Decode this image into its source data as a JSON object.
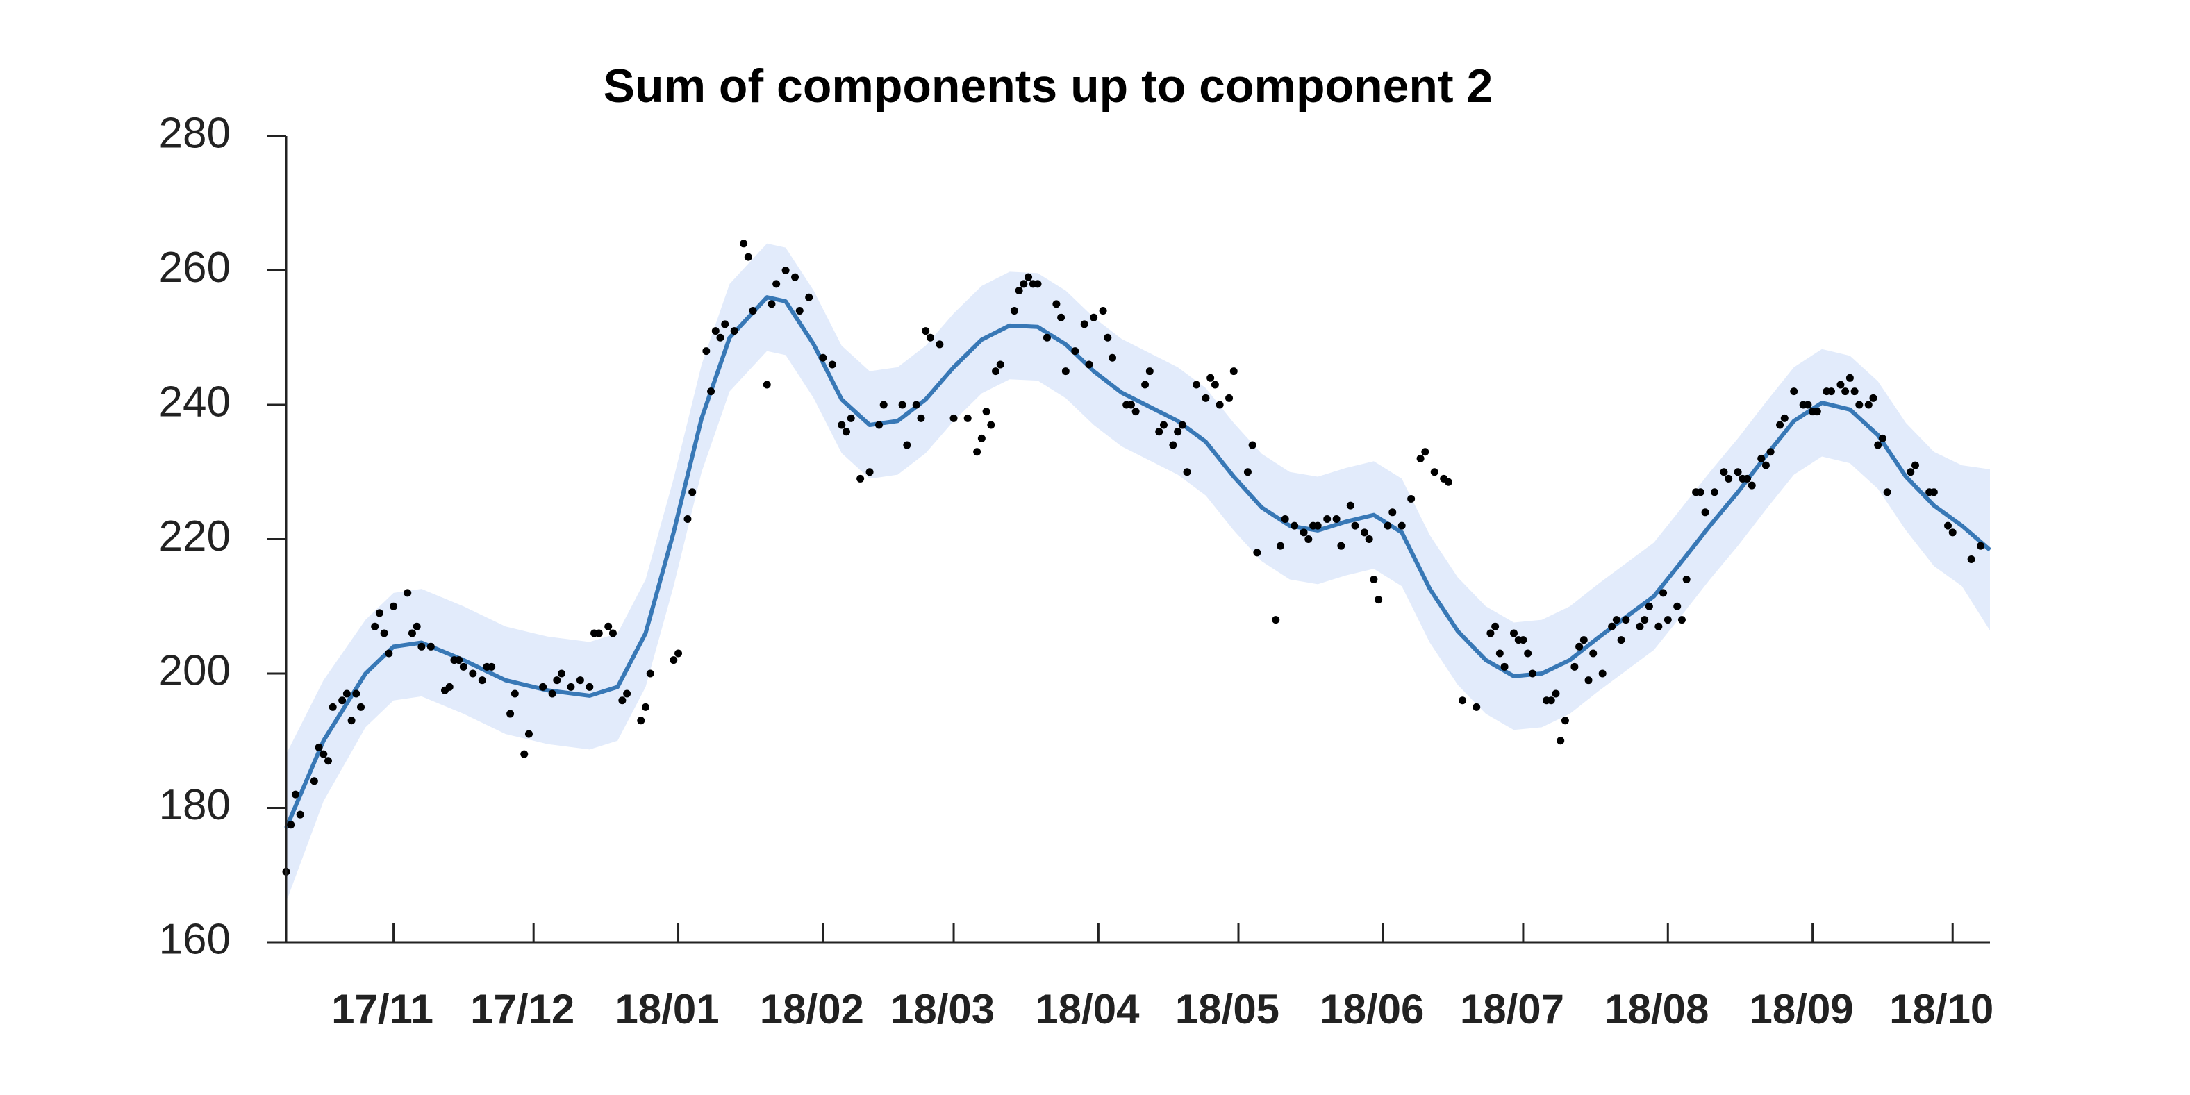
{
  "chart_data": {
    "type": "line",
    "title": "Sum of components up to component 2",
    "x": [
      0,
      8,
      17,
      23,
      29,
      38,
      47,
      56,
      65,
      71,
      77,
      83,
      89,
      95,
      103,
      107,
      113,
      119,
      125,
      131,
      137,
      143,
      149,
      155,
      161,
      167,
      173,
      179,
      185,
      191,
      197,
      203,
      209,
      215,
      221,
      227,
      233,
      239,
      245,
      251,
      257,
      263,
      269,
      275,
      281,
      287,
      293,
      299,
      305,
      311,
      317,
      323,
      329,
      335,
      341,
      347,
      353,
      359,
      365
    ],
    "values": [
      177,
      190,
      200,
      204,
      204.6,
      202,
      199,
      197.5,
      196.7,
      198,
      206,
      221,
      238,
      250,
      256,
      255.4,
      249,
      240.8,
      237,
      237.6,
      240.8,
      245.6,
      249.7,
      251.8,
      251.6,
      249,
      245,
      241.8,
      239.7,
      237.6,
      234.5,
      229.3,
      224.7,
      222,
      221.3,
      222.6,
      223.6,
      221,
      212.6,
      206.3,
      202,
      199.6,
      200,
      202,
      205.3,
      208.4,
      211.5,
      216.7,
      222,
      227,
      232.4,
      237.6,
      240.3,
      239.3,
      235.5,
      229.3,
      225,
      222,
      218.4
    ],
    "upper": [
      188,
      199,
      208,
      212,
      212.6,
      210,
      207,
      205.5,
      204.7,
      206,
      214,
      229,
      246,
      258,
      264,
      263.4,
      257,
      248.8,
      245,
      245.6,
      248.8,
      253.6,
      257.7,
      259.8,
      259.6,
      257,
      253,
      249.8,
      247.7,
      245.6,
      242.5,
      237.3,
      232.7,
      230,
      229.3,
      230.6,
      231.6,
      229,
      220.6,
      214.3,
      210,
      207.6,
      208,
      210,
      213.3,
      216.4,
      219.5,
      224.7,
      230,
      235,
      240.4,
      245.6,
      248.3,
      247.3,
      243.5,
      237.3,
      233,
      231,
      230.4
    ],
    "lower": [
      166,
      181,
      192,
      196,
      196.6,
      194,
      191,
      189.5,
      188.7,
      190,
      198,
      213,
      230,
      242,
      248,
      247.4,
      241,
      232.8,
      229,
      229.6,
      232.8,
      237.6,
      241.7,
      243.8,
      243.6,
      241,
      237,
      233.8,
      231.7,
      229.6,
      226.5,
      221.3,
      216.7,
      214,
      213.3,
      214.6,
      215.6,
      213,
      204.6,
      198.3,
      194,
      191.6,
      192,
      194,
      197.3,
      200.4,
      203.5,
      208.7,
      214,
      219,
      224.4,
      229.6,
      232.3,
      231.3,
      227.5,
      221.3,
      216,
      213,
      206.4
    ],
    "color": "#3878b6",
    "band_color": "#e2ebfb",
    "points": {
      "color": "#000000",
      "x": [
        0,
        1,
        2,
        3,
        6,
        7,
        8,
        9,
        10,
        12,
        13,
        14,
        15,
        16,
        19,
        20,
        21,
        22,
        23,
        26,
        27,
        28,
        29,
        31,
        34,
        35,
        36,
        37,
        38,
        40,
        42,
        43,
        44,
        48,
        49,
        51,
        52,
        55,
        57,
        58,
        59,
        61,
        63,
        65,
        66,
        67,
        69,
        70,
        72,
        73,
        76,
        77,
        78,
        83,
        84,
        86,
        87,
        90,
        91,
        92,
        93,
        94,
        96,
        98,
        99,
        100,
        103,
        104,
        105,
        107,
        109,
        110,
        112,
        115,
        117,
        119,
        120,
        121,
        123,
        125,
        127,
        128,
        132,
        133,
        135,
        136,
        137,
        138,
        140,
        143,
        146,
        148,
        149,
        150,
        151,
        152,
        153,
        156,
        157,
        158,
        159,
        160,
        161,
        163,
        165,
        166,
        167,
        169,
        171,
        172,
        173,
        175,
        176,
        177,
        180,
        181,
        182,
        184,
        185,
        187,
        188,
        190,
        191,
        192,
        193,
        195,
        197,
        198,
        199,
        200,
        202,
        203,
        206,
        207,
        208,
        212,
        213,
        214,
        216,
        218,
        219,
        220,
        221,
        223,
        225,
        226,
        228,
        229,
        231,
        232,
        233,
        234,
        236,
        237,
        239,
        241,
        243,
        244,
        246,
        248,
        249,
        252,
        255,
        258,
        259,
        260,
        261,
        263,
        264,
        265,
        266,
        267,
        270,
        271,
        272,
        273,
        274,
        276,
        277,
        278,
        279,
        280,
        282,
        284,
        285,
        286,
        287,
        290,
        291,
        292,
        294,
        295,
        296,
        298,
        299,
        300,
        302,
        303,
        304,
        306,
        308,
        309,
        311,
        312,
        313,
        314,
        316,
        317,
        318,
        320,
        321,
        323,
        325,
        326,
        327,
        328,
        330,
        331,
        333,
        334,
        335,
        336,
        337,
        339,
        340,
        341,
        342,
        343,
        348,
        349,
        352,
        353,
        356,
        357,
        361,
        363
      ],
      "values": [
        170.5,
        177.5,
        182,
        179,
        184,
        189,
        188,
        187,
        195,
        196,
        197,
        193,
        197,
        195,
        207,
        209,
        206,
        203,
        210,
        212,
        206,
        207,
        204,
        204,
        197.5,
        198,
        202,
        202,
        201,
        200,
        199,
        201,
        201,
        194,
        197,
        188,
        191,
        198,
        197,
        199,
        200,
        198,
        199,
        198,
        206,
        206,
        207,
        206,
        196,
        197,
        193,
        195,
        200,
        202,
        203,
        223,
        227,
        248,
        242,
        251,
        250,
        252,
        251,
        264,
        262,
        254,
        243,
        255,
        258,
        260,
        259,
        254,
        256,
        247,
        246,
        237,
        236,
        238,
        229,
        230,
        237,
        240,
        240,
        234,
        240,
        238,
        251,
        250,
        249,
        238,
        238,
        233,
        235,
        239,
        237,
        245,
        246,
        254,
        257,
        258,
        259,
        258,
        258,
        250,
        255,
        253,
        245,
        248,
        252,
        246,
        253,
        254,
        250,
        247,
        240,
        240,
        239,
        243,
        245,
        236,
        237,
        234,
        236,
        237,
        230,
        243,
        241,
        244,
        243,
        240,
        241,
        245,
        230,
        234,
        218,
        208,
        219,
        223,
        222,
        221,
        220,
        222,
        222,
        223,
        223,
        219,
        225,
        222,
        221,
        220,
        214,
        211,
        222,
        224,
        222,
        226,
        232,
        233,
        230,
        229,
        228.5,
        196,
        195,
        206,
        207,
        203,
        201,
        206,
        205,
        205,
        203,
        200,
        196,
        196,
        197,
        190,
        193,
        201,
        204,
        205,
        199,
        203,
        200,
        207,
        208,
        205,
        208,
        207,
        208,
        210,
        207,
        212,
        208,
        210,
        208,
        214,
        227,
        227,
        224,
        227,
        230,
        229,
        230,
        229,
        229,
        228,
        232,
        231,
        233,
        237,
        238,
        242,
        240,
        240,
        239,
        239,
        242,
        242,
        243,
        242,
        244,
        242,
        240,
        240,
        241,
        234,
        235,
        227,
        230,
        231,
        227,
        227,
        222,
        221,
        217,
        219
      ]
    },
    "xlim": [
      0,
      365
    ],
    "ylim": [
      160,
      280
    ],
    "xticks": [
      {
        "value": 23,
        "label": "17/11"
      },
      {
        "value": 53,
        "label": "17/12"
      },
      {
        "value": 84,
        "label": "18/01"
      },
      {
        "value": 115,
        "label": "18/02"
      },
      {
        "value": 143,
        "label": "18/03"
      },
      {
        "value": 174,
        "label": "18/04"
      },
      {
        "value": 204,
        "label": "18/05"
      },
      {
        "value": 235,
        "label": "18/06"
      },
      {
        "value": 265,
        "label": "18/07"
      },
      {
        "value": 296,
        "label": "18/08"
      },
      {
        "value": 327,
        "label": "18/09"
      },
      {
        "value": 357,
        "label": "18/10"
      }
    ],
    "yticks": [
      160,
      180,
      200,
      220,
      240,
      260,
      280
    ]
  }
}
